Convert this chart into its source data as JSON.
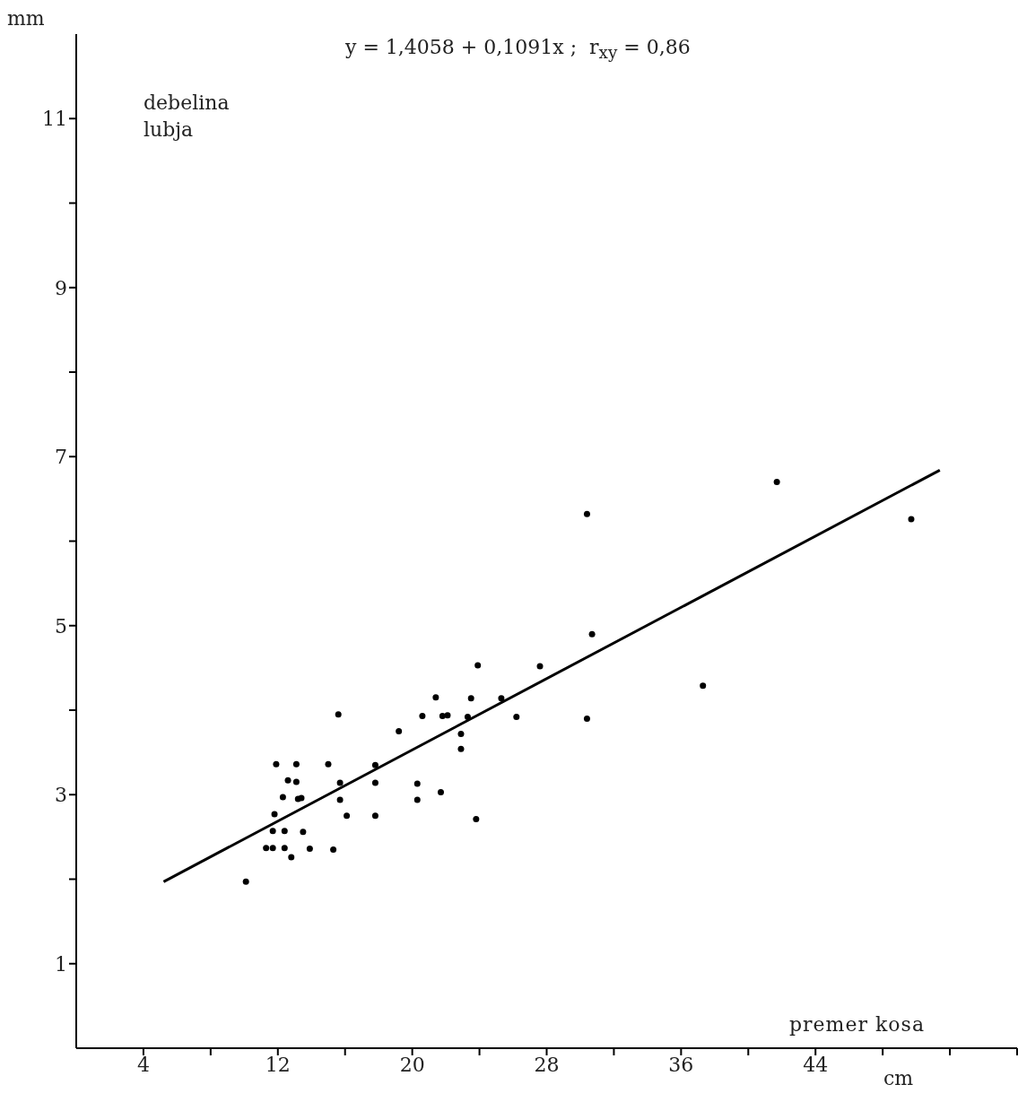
{
  "chart_data": {
    "type": "scatter",
    "xlabel": "premer kosa",
    "ylabel": "debelina lubja",
    "annotations": [
      "mm",
      "cm",
      "y = 1,4058 + 0,1091x ;  r$_{xy}$ = 0,86"
    ],
    "xlim": [
      0,
      56
    ],
    "ylim": [
      0,
      12
    ],
    "xticks": [
      4,
      {
        "value": 8,
        "label": null
      },
      12,
      {
        "value": 16,
        "label": null
      },
      20,
      {
        "value": 24,
        "label": null
      },
      28,
      {
        "value": 32,
        "label": null
      },
      36,
      {
        "value": 40,
        "label": null
      },
      44,
      {
        "value": 48,
        "label": null
      },
      {
        "value": 52,
        "label": null
      },
      {
        "value": 56,
        "label": null
      }
    ],
    "yticks": [
      1,
      {
        "value": 2,
        "label": null
      },
      3,
      {
        "value": 4,
        "label": null
      },
      5,
      {
        "value": 6,
        "label": null
      },
      7,
      {
        "value": 8,
        "label": null
      },
      9,
      {
        "value": 10,
        "label": null
      },
      11
    ],
    "series": [
      {
        "marker": "circle",
        "color": "#000000",
        "x": [
          10.1,
          11.3,
          11.7,
          11.7,
          11.8,
          11.9,
          12.3,
          12.4,
          12.4,
          12.6,
          12.8,
          13.1,
          13.1,
          13.2,
          13.4,
          13.5,
          13.9,
          15.0,
          15.3,
          15.6,
          15.7,
          15.7,
          16.1,
          17.8,
          17.8,
          17.8,
          19.2,
          20.3,
          20.3,
          20.6,
          21.4,
          21.7,
          21.8,
          22.1,
          22.9,
          22.9,
          23.3,
          23.5,
          23.8,
          23.9,
          25.3,
          26.2,
          27.6,
          30.4,
          30.4,
          30.7,
          37.3,
          41.7,
          49.7
        ],
        "values": [
          1.97,
          2.37,
          2.37,
          2.57,
          2.77,
          3.36,
          2.97,
          2.57,
          2.37,
          3.17,
          2.26,
          3.36,
          3.15,
          2.95,
          2.96,
          2.56,
          2.36,
          3.36,
          2.35,
          3.95,
          3.14,
          2.94,
          2.75,
          3.35,
          3.14,
          2.75,
          3.75,
          3.13,
          2.94,
          3.93,
          4.15,
          3.03,
          3.93,
          3.94,
          3.72,
          3.54,
          3.92,
          4.14,
          2.71,
          4.53,
          4.14,
          3.92,
          4.52,
          6.32,
          3.9,
          4.9,
          4.29,
          6.7,
          6.26
        ]
      },
      {
        "type": "line",
        "marker": "none",
        "color": "#000000",
        "x": [
          5.2,
          51.4
        ],
        "values": [
          1.97,
          6.84
        ]
      }
    ]
  }
}
